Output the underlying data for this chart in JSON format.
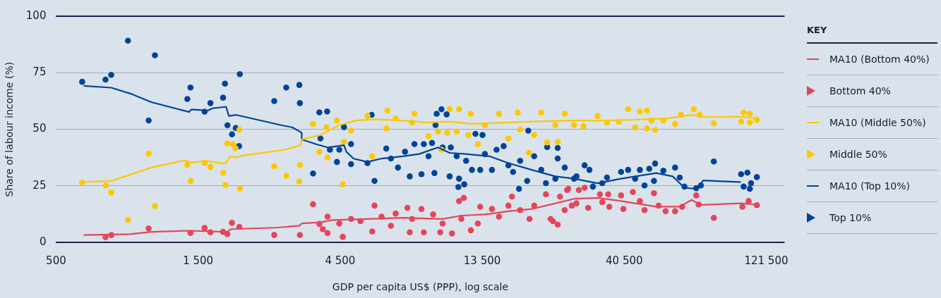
{
  "chart_data": {
    "type": "scatter",
    "xlabel": "GDP per capita US$ (PPP), log scale",
    "ylabel": "Share of labour income (%)",
    "log": "x",
    "xlim": [
      500,
      140000
    ],
    "xticks": [
      500,
      {
        "value": 1500,
        "label": "1 500"
      },
      {
        "value": 4500,
        "label": "4 500"
      },
      {
        "value": 13500,
        "label": "13 500"
      },
      {
        "value": 40500,
        "label": "40 500"
      },
      {
        "value": 121500,
        "label": "121 500"
      }
    ],
    "ylim": [
      0,
      100
    ],
    "yticks": [
      0,
      25,
      50,
      75,
      100
    ],
    "grid": "y",
    "legend": "right",
    "legend_title": "KEY",
    "series": [
      {
        "name": "MA10 (Bottom 40%)",
        "type": "line",
        "marker": "none",
        "color": "#e5455a",
        "x": [
          619,
          888,
          1045,
          1398,
          1869,
          1938,
          2787,
          3282,
          3343,
          3864,
          4233,
          5559,
          7300,
          9941,
          11491,
          13785,
          16530,
          19815,
          23770,
          27478,
          32962,
          39527,
          51905,
          62223,
          68161,
          73274,
          99800,
          111000
        ],
        "values": [
          3.3,
          3.7,
          4.7,
          5.2,
          4.7,
          5.9,
          6.6,
          7.4,
          8.4,
          8.9,
          9.9,
          10.4,
          10.9,
          10.4,
          11.9,
          12.4,
          13.8,
          14.8,
          17.3,
          19.3,
          19.7,
          18.3,
          15.8,
          15.8,
          18.8,
          16.6,
          17.3,
          16.8
        ]
      },
      {
        "name": "Bottom 40%",
        "type": "scatter",
        "marker": "circle",
        "color": "#e5455a",
        "x": [
          733,
          767,
          1023,
          1414,
          1577,
          1650,
          1819,
          1880,
          1949,
          2063,
          2703,
          3295,
          3649,
          3831,
          3936,
          4081,
          4081,
          4595,
          4470,
          4896,
          5264,
          5870,
          5765,
          6199,
          6664,
          6913,
          7570,
          7709,
          7848,
          8441,
          8596,
          9240,
          9758,
          9941,
          10689,
          11288,
          11706,
          11491,
          12361,
          13054,
          13293,
          14556,
          15371,
          16530,
          16993,
          18101,
          19465,
          20185,
          22097,
          22922,
          24205,
          24641,
          26021,
          26992,
          23335,
          26277,
          28504,
          29815,
          25561,
          27991,
          30642,
          33566,
          35765,
          34170,
          36084,
          39527,
          40239,
          43285,
          45709,
          47384,
          50972,
          52839,
          55799,
          60024,
          63385,
          70683,
          71978,
          80987,
          101000,
          106000,
          113000
        ],
        "values": [
          2.3,
          3.3,
          6.2,
          4.2,
          6.4,
          4.5,
          4.7,
          3.7,
          8.7,
          6.9,
          3.3,
          3.3,
          16.9,
          8.2,
          5.9,
          11.4,
          4.2,
          2.5,
          8.4,
          10.4,
          9.4,
          16.3,
          4.9,
          11.4,
          7.4,
          12.8,
          15.3,
          4.5,
          10.4,
          14.8,
          4.5,
          12.4,
          4.5,
          8.4,
          4.0,
          18.3,
          19.7,
          10.4,
          5.4,
          8.4,
          15.8,
          14.8,
          11.4,
          16.3,
          20.3,
          14.3,
          10.4,
          16.3,
          21.3,
          10.4,
          7.9,
          20.3,
          23.2,
          16.3,
          9.4,
          23.7,
          23.2,
          24.2,
          14.3,
          17.3,
          15.3,
          21.3,
          21.3,
          17.8,
          15.8,
          20.8,
          14.8,
          22.3,
          18.3,
          14.3,
          21.8,
          16.3,
          13.8,
          13.8,
          15.8,
          20.8,
          16.8,
          10.9,
          15.8,
          18.3,
          16.5
        ]
      },
      {
        "name": "MA10 (Middle 50%)",
        "type": "line",
        "marker": "none",
        "color": "#fcc800",
        "x": [
          612,
          767,
          1045,
          1348,
          1424,
          1588,
          1851,
          1921,
          2010,
          2085,
          2943,
          3314,
          3343,
          3864,
          4470,
          5075,
          5870,
          7300,
          8751,
          10498,
          12588,
          16530,
          19815,
          26021,
          36084,
          47384,
          56840,
          68161,
          74641,
          99800,
          111000
        ],
        "values": [
          26.7,
          27.2,
          33.1,
          36.3,
          35.3,
          36.1,
          34.8,
          38.1,
          37.6,
          38.3,
          41.0,
          43.0,
          45.5,
          47.5,
          51.9,
          53.9,
          54.4,
          53.9,
          53.0,
          53.4,
          52.4,
          53.0,
          53.4,
          53.9,
          53.9,
          54.4,
          54.9,
          56.4,
          55.4,
          55.6,
          54.9
        ]
      },
      {
        "name": "Middle 50%",
        "type": "scatter",
        "marker": "circle",
        "color": "#fcc800",
        "x": [
          612,
          735,
          766,
          872,
          1023,
          1074,
          1380,
          1416,
          1577,
          1650,
          1822,
          1851,
          1880,
          1961,
          2004,
          2063,
          2071,
          2703,
          2966,
          3282,
          3301,
          3649,
          3831,
          4595,
          4081,
          4045,
          4390,
          4896,
          4636,
          5559,
          5765,
          6484,
          6428,
          6913,
          7848,
          7994,
          8914,
          9586,
          9854,
          10498,
          10305,
          11288,
          11085,
          12361,
          12134,
          13054,
          13785,
          15371,
          16530,
          17769,
          18101,
          19391,
          20185,
          21316,
          22314,
          24205,
          25561,
          23770,
          27478,
          29559,
          32962,
          35446,
          38816,
          41740,
          44078,
          45709,
          48268,
          48268,
          51414,
          50038,
          54812,
          60024,
          62834,
          69388,
          72626,
          80987,
          100000,
          102000,
          107000,
          107000,
          113000
        ],
        "values": [
          26.5,
          25.2,
          22.1,
          10.0,
          39.3,
          16.1,
          34.3,
          27.2,
          35.1,
          33.4,
          30.8,
          25.4,
          43.8,
          43.4,
          41.6,
          49.9,
          23.9,
          33.7,
          29.5,
          26.9,
          34.3,
          52.4,
          40.1,
          25.7,
          37.6,
          50.9,
          53.9,
          49.4,
          44.5,
          55.9,
          38.1,
          58.3,
          50.4,
          54.9,
          53.0,
          56.9,
          47.0,
          49.0,
          41.0,
          58.9,
          48.5,
          58.9,
          49.0,
          56.9,
          47.5,
          43.5,
          51.9,
          56.9,
          46.0,
          57.4,
          49.9,
          39.6,
          47.5,
          57.4,
          44.2,
          44.5,
          56.9,
          51.9,
          51.9,
          51.4,
          55.9,
          53.0,
          53.4,
          58.9,
          50.9,
          57.9,
          58.3,
          50.4,
          49.7,
          53.9,
          53.9,
          52.4,
          56.4,
          58.9,
          56.4,
          52.7,
          53.4,
          57.4,
          56.9,
          53.0,
          54.2
        ]
      },
      {
        "name": "MA10 (Top 10%)",
        "type": "line",
        "marker": "none",
        "color": "#00449a",
        "x": [
          619,
          767,
          888,
          1045,
          1398,
          1424,
          1617,
          1676,
          1862,
          1903,
          2010,
          2839,
          3108,
          3343,
          3343,
          3728,
          4081,
          4636,
          4721,
          4985,
          5559,
          6199,
          7300,
          8287,
          9586,
          10498,
          11920,
          14290,
          16530,
          19815,
          23770,
          27478,
          32962,
          39527,
          51905,
          58924,
          64546,
          70683,
          74641,
          99800
        ],
        "values": [
          69.2,
          68.4,
          65.8,
          62.0,
          57.7,
          58.8,
          58.3,
          59.3,
          60.0,
          55.9,
          56.4,
          51.9,
          50.9,
          48.5,
          45.5,
          43.5,
          42.0,
          43.0,
          40.1,
          37.1,
          35.6,
          37.1,
          38.1,
          39.1,
          42.0,
          39.6,
          39.1,
          38.1,
          35.1,
          32.1,
          29.2,
          28.2,
          26.2,
          28.2,
          30.7,
          29.2,
          24.2,
          23.7,
          27.4,
          26.7
        ]
      },
      {
        "name": "Top 10%",
        "type": "scatter",
        "marker": "circle",
        "color": "#00449a",
        "x": [
          612,
          733,
          766,
          872,
          1074,
          1023,
          1414,
          1380,
          1577,
          1650,
          1819,
          1846,
          2071,
          1882,
          2007,
          1949,
          2059,
          2703,
          2966,
          3282,
          3295,
          3831,
          3649,
          4069,
          5743,
          4636,
          3864,
          5870,
          4157,
          4470,
          4896,
          4390,
          4896,
          5559,
          6428,
          6664,
          7037,
          7431,
          7709,
          7994,
          8441,
          8596,
          8914,
          9159,
          9331,
          9854,
          9495,
          10254,
          9413,
          9941,
          10498,
          10589,
          11085,
          11288,
          11226,
          11751,
          11920,
          12469,
          12814,
          13532,
          13293,
          13785,
          14556,
          15090,
          15935,
          16530,
          17142,
          18101,
          17944,
          19281,
          19115,
          20185,
          21316,
          22097,
          22314,
          24205,
          24205,
          25561,
          27478,
          23770,
          27991,
          29815,
          30943,
          31786,
          35446,
          34170,
          39527,
          41740,
          44078,
          45709,
          49153,
          51414,
          47384,
          50972,
          54812,
          60024,
          62223,
          64546,
          70683,
          73274,
          80987,
          100000,
          105000,
          113000,
          102000,
          107000,
          108000
        ],
        "values": [
          71.0,
          72.0,
          74.1,
          89.2,
          82.7,
          53.9,
          68.5,
          63.4,
          57.8,
          61.6,
          64.0,
          70.2,
          74.4,
          51.8,
          50.6,
          47.8,
          42.6,
          62.5,
          68.5,
          69.6,
          61.6,
          57.5,
          30.5,
          57.9,
          56.4,
          51.0,
          46.0,
          27.2,
          41.0,
          41.0,
          43.5,
          35.6,
          34.6,
          35.1,
          41.5,
          37.1,
          33.1,
          40.1,
          29.2,
          43.5,
          30.2,
          43.5,
          38.1,
          44.0,
          30.7,
          58.9,
          56.9,
          56.6,
          51.9,
          42.0,
          29.2,
          42.0,
          38.1,
          28.2,
          24.5,
          25.7,
          36.1,
          32.1,
          48.0,
          47.5,
          32.1,
          39.1,
          32.1,
          41.0,
          42.6,
          34.1,
          31.2,
          36.1,
          23.7,
          49.4,
          27.2,
          38.1,
          32.1,
          26.2,
          42.2,
          37.1,
          41.8,
          33.1,
          28.2,
          28.2,
          29.2,
          34.1,
          32.1,
          24.7,
          28.7,
          26.2,
          31.2,
          32.1,
          28.2,
          32.1,
          32.6,
          34.9,
          25.2,
          27.2,
          31.7,
          33.1,
          28.7,
          24.7,
          24.0,
          25.2,
          35.8,
          30.2,
          30.9,
          28.9,
          24.7,
          23.7,
          26.2
        ]
      }
    ]
  }
}
